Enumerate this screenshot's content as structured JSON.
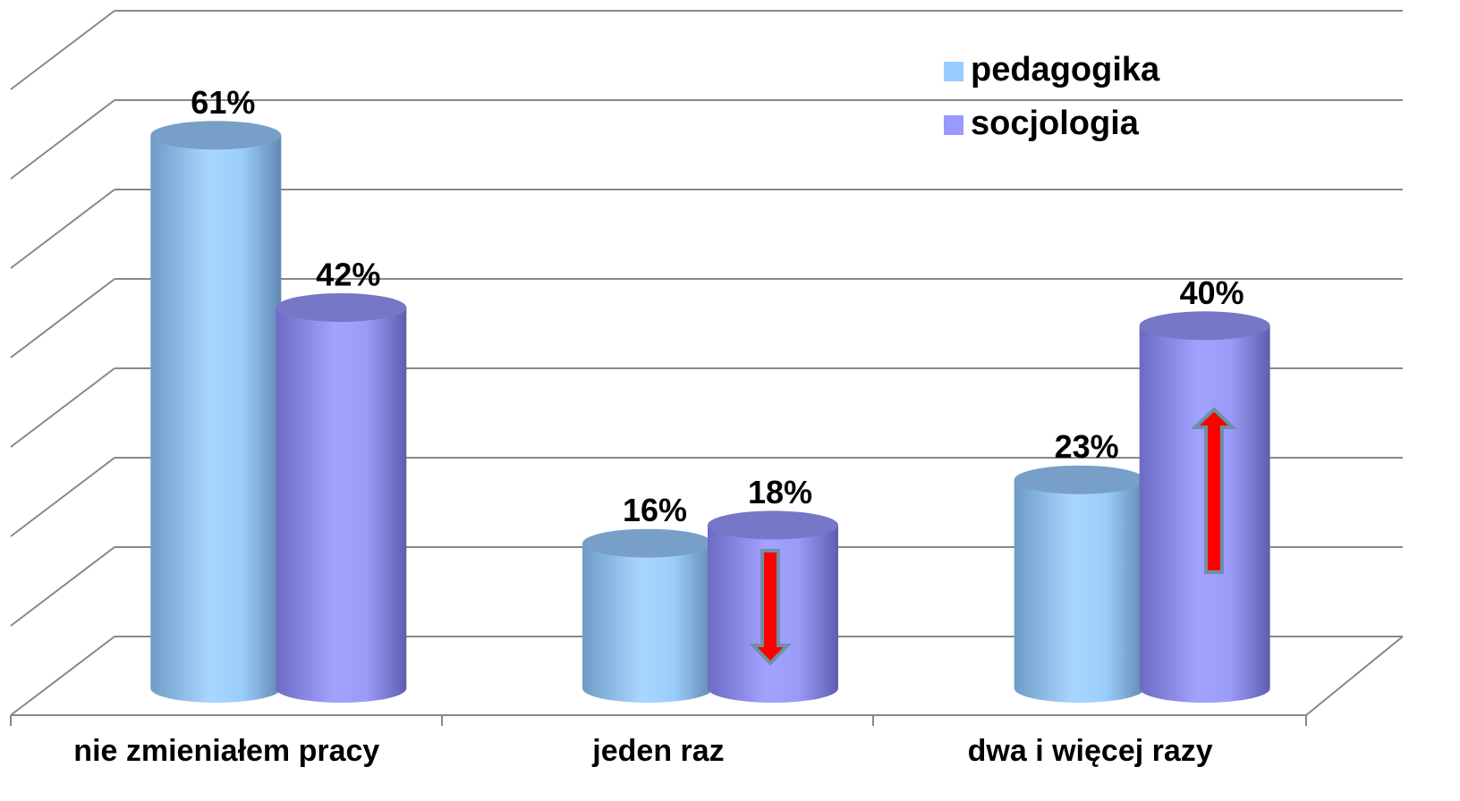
{
  "chart_data": {
    "type": "bar3d",
    "categories": [
      "nie zmieniałem pracy",
      "jeden raz",
      "dwa i więcej razy"
    ],
    "series": [
      {
        "name": "pedagogika",
        "color": "#99ccff",
        "values": [
          61,
          16,
          23
        ],
        "value_labels": [
          "61%",
          "16%",
          "23%"
        ]
      },
      {
        "name": "socjologia",
        "color": "#9999ff",
        "values": [
          42,
          18,
          40
        ],
        "value_labels": [
          "42%",
          "18%",
          "40%"
        ]
      }
    ],
    "ylim": [
      0,
      70
    ],
    "yticks": [
      0,
      10,
      20,
      30,
      40,
      50,
      60,
      70
    ],
    "grid": true,
    "legend": "top-right"
  }
}
